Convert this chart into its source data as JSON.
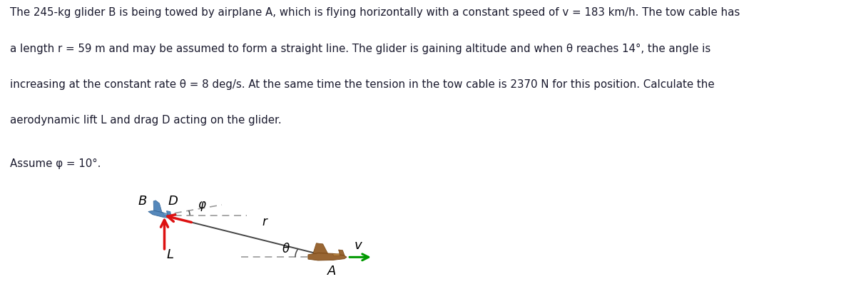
{
  "bg_color": "#ffffff",
  "text_color": "#1a1a2e",
  "main_text_line1": "The 245-kg glider B is being towed by airplane A, which is flying horizontally with a constant speed of v = 183 km/h. The tow cable has",
  "main_text_line2": "a length r = 59 m and may be assumed to form a straight line. The glider is gaining altitude and when θ reaches 14°, the angle is",
  "main_text_line3": "increasing at the constant rate θ̇ = 8 deg/s. At the same time the tension in the tow cable is 2370 N for this position. Calculate the",
  "main_text_line4": "aerodynamic lift L and drag D acting on the glider.",
  "assume_text": "Assume φ = 10°.",
  "theta_deg": 14,
  "phi_deg": 10,
  "cable_color": "#444444",
  "dashed_color": "#999999",
  "arrow_red": "#dd1111",
  "arrow_green": "#009900",
  "glider_blue": "#5588bb",
  "glider_blue_dark": "#336699",
  "glider_blue_light": "#88aacc",
  "plane_brown": "#996633",
  "plane_brown_dark": "#774411",
  "plane_brown_mid": "#bb8844"
}
